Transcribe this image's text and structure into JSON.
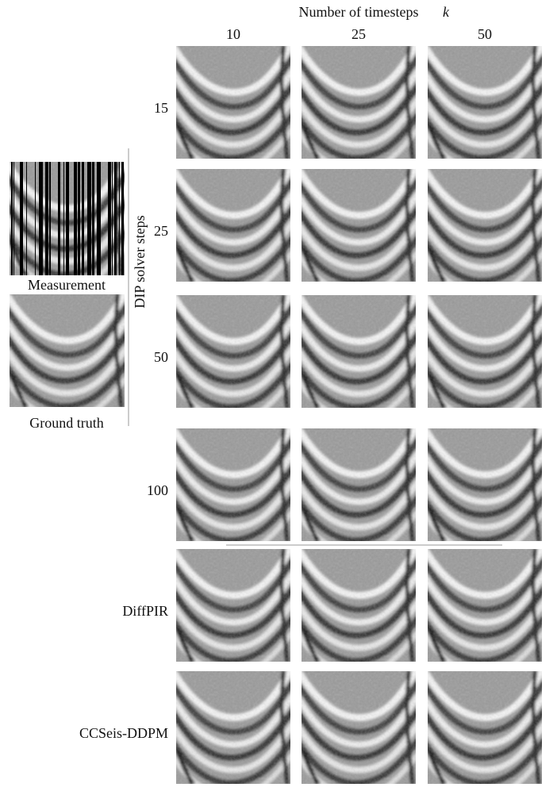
{
  "header": {
    "title": "Number of timesteps",
    "variable": "k"
  },
  "columns": [
    "10",
    "25",
    "50"
  ],
  "rows": [
    "15",
    "25",
    "50",
    "100",
    "DiffPIR",
    "CCSeis-DDPM"
  ],
  "side_label": "DIP solver steps",
  "measurement": {
    "label": "Measurement"
  },
  "ground_truth": {
    "label": "Ground truth"
  }
}
